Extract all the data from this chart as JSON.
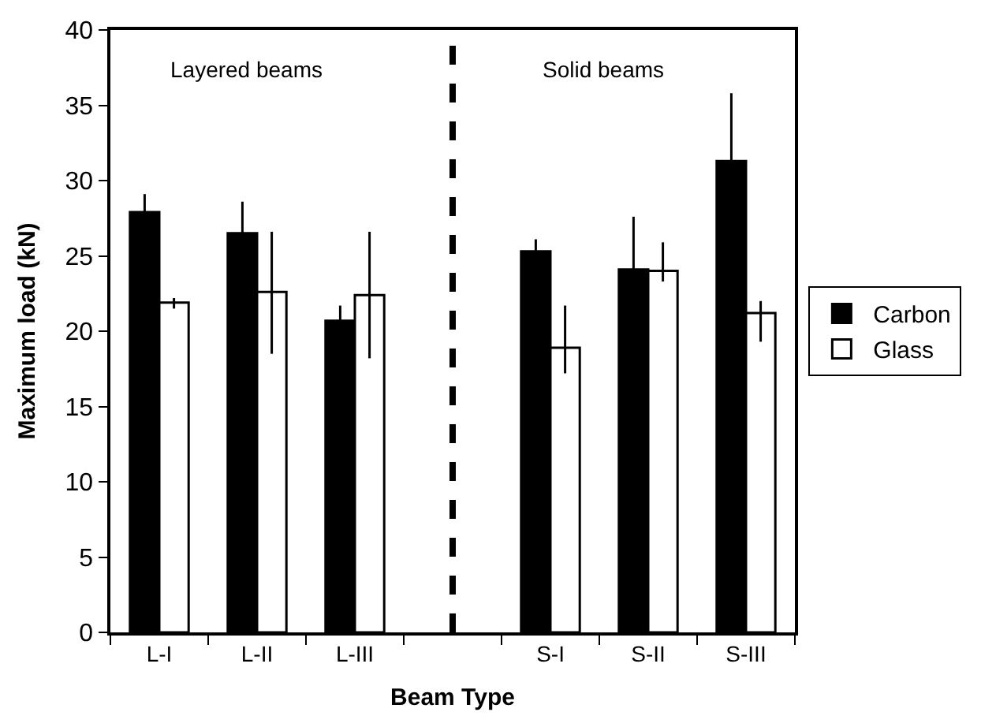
{
  "chart_data": {
    "type": "bar",
    "xlabel": "Beam Type",
    "ylabel": "Maximum load (kN)",
    "categories": [
      "L-I",
      "L-II",
      "L-III",
      null,
      "S-I",
      "S-II",
      "S-III"
    ],
    "series": [
      {
        "name": "Carbon",
        "color": "#000000",
        "values": [
          27.9,
          26.5,
          20.7,
          null,
          25.3,
          24.1,
          31.3
        ],
        "errors": [
          1.2,
          2.1,
          1.0,
          null,
          0.8,
          3.5,
          4.5
        ]
      },
      {
        "name": "Glass",
        "color": "#ffffff",
        "values": [
          21.9,
          22.6,
          22.4,
          null,
          18.9,
          24.0,
          21.2
        ],
        "errors": [
          [
            21.5,
            22.2
          ],
          [
            18.5,
            26.6
          ],
          [
            18.2,
            26.6
          ],
          null,
          [
            17.2,
            21.7
          ],
          [
            23.3,
            25.9
          ],
          [
            19.3,
            22.0
          ]
        ]
      }
    ],
    "ylim": [
      0,
      40
    ],
    "yticks": [
      0,
      5,
      10,
      15,
      20,
      25,
      30,
      35,
      40
    ],
    "annotations": [
      "Layered beams",
      "Solid beams"
    ],
    "legend": "right"
  }
}
